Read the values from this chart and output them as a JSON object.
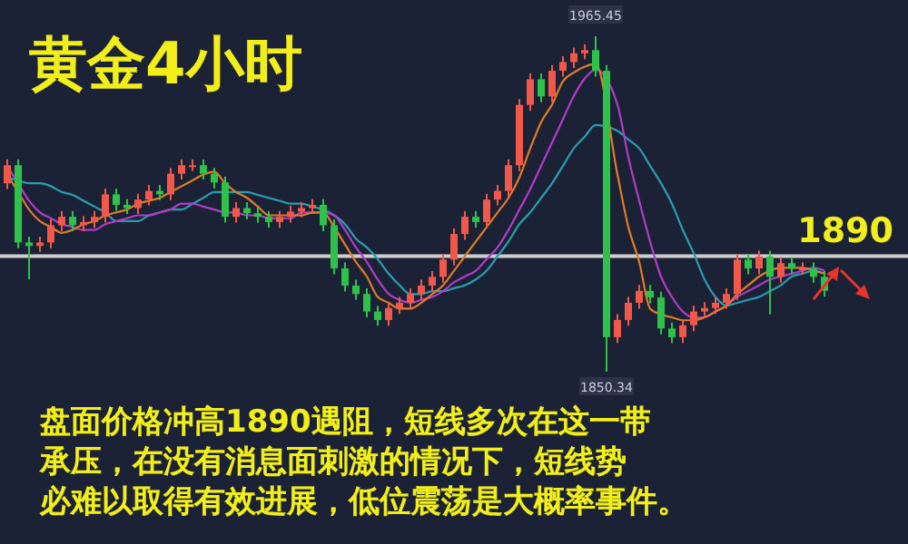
{
  "chart_data": {
    "type": "candlestick",
    "title": "黄金4小时",
    "categories": [
      null,
      null,
      null,
      null,
      null,
      null,
      null,
      null,
      null,
      null,
      null,
      null,
      null,
      null,
      null,
      null,
      null,
      null,
      null,
      null,
      null,
      null,
      null,
      null,
      null,
      null,
      null,
      null,
      null,
      null,
      null,
      null,
      null,
      null,
      null,
      null,
      null,
      null,
      null,
      null,
      null,
      null,
      null,
      null,
      null,
      null,
      null,
      null,
      null,
      null,
      null,
      null,
      null,
      null,
      null,
      null,
      null,
      null,
      null,
      null,
      null,
      null,
      null,
      null,
      null,
      null,
      null,
      null,
      null,
      null,
      null,
      null,
      null,
      null,
      null,
      null
    ],
    "ohlc": [
      [
        1915.0,
        1923.2,
        1913.0,
        1921.2
      ],
      [
        1921.2,
        1923.2,
        1892.7,
        1894.7
      ],
      [
        1894.7,
        1896.7,
        1882.0,
        1893.5
      ],
      [
        1893.5,
        1896.7,
        1891.5,
        1894.7
      ],
      [
        1894.7,
        1902.6,
        1892.7,
        1900.6
      ],
      [
        1900.6,
        1905.5,
        1898.6,
        1903.5
      ],
      [
        1903.5,
        1905.5,
        1898.6,
        1900.6
      ],
      [
        1900.6,
        1903.7,
        1898.6,
        1901.7
      ],
      [
        1901.7,
        1905.5,
        1899.7,
        1903.5
      ],
      [
        1903.5,
        1913.2,
        1901.5,
        1911.2
      ],
      [
        1911.2,
        1913.2,
        1905.6,
        1907.6
      ],
      [
        1907.6,
        1909.6,
        1904.5,
        1906.5
      ],
      [
        1906.5,
        1911.4,
        1904.5,
        1909.4
      ],
      [
        1909.4,
        1914.4,
        1907.4,
        1912.4
      ],
      [
        1912.4,
        1914.4,
        1909.2,
        1911.2
      ],
      [
        1911.2,
        1920.3,
        1909.2,
        1918.3
      ],
      [
        1918.3,
        1923.2,
        1916.3,
        1921.2
      ],
      [
        1921.2,
        1923.2,
        1919.2,
        1921.2
      ],
      [
        1921.2,
        1923.2,
        1916.3,
        1918.3
      ],
      [
        1918.3,
        1920.3,
        1913.3,
        1915.3
      ],
      [
        1915.3,
        1917.3,
        1901.5,
        1903.5
      ],
      [
        1903.5,
        1908.5,
        1901.5,
        1906.5
      ],
      [
        1906.5,
        1908.5,
        1902.7,
        1904.7
      ],
      [
        1904.7,
        1906.7,
        1901.5,
        1903.5
      ],
      [
        1903.5,
        1905.5,
        1899.7,
        1901.7
      ],
      [
        1901.7,
        1905.5,
        1899.7,
        1903.5
      ],
      [
        1903.5,
        1907.3,
        1901.5,
        1905.3
      ],
      [
        1905.3,
        1908.5,
        1903.3,
        1906.5
      ],
      [
        1906.5,
        1909.6,
        1904.5,
        1907.6
      ],
      [
        1907.6,
        1909.6,
        1898.6,
        1900.6
      ],
      [
        1900.6,
        1902.6,
        1883.8,
        1885.8
      ],
      [
        1885.8,
        1887.8,
        1877.9,
        1879.9
      ],
      [
        1879.9,
        1881.9,
        1875.0,
        1877.0
      ],
      [
        1877.0,
        1879.0,
        1869.0,
        1871.0
      ],
      [
        1871.0,
        1873.0,
        1866.1,
        1868.1
      ],
      [
        1868.1,
        1874.2,
        1866.1,
        1872.2
      ],
      [
        1872.2,
        1876.0,
        1870.2,
        1874.0
      ],
      [
        1874.0,
        1879.0,
        1872.0,
        1877.0
      ],
      [
        1877.0,
        1881.9,
        1875.0,
        1879.9
      ],
      [
        1879.9,
        1884.9,
        1877.9,
        1882.9
      ],
      [
        1882.9,
        1890.8,
        1880.9,
        1888.8
      ],
      [
        1888.8,
        1899.6,
        1886.8,
        1897.6
      ],
      [
        1897.6,
        1905.5,
        1895.6,
        1903.5
      ],
      [
        1903.5,
        1905.5,
        1899.7,
        1901.7
      ],
      [
        1901.7,
        1911.4,
        1899.7,
        1909.4
      ],
      [
        1909.4,
        1914.4,
        1907.4,
        1912.4
      ],
      [
        1912.4,
        1923.2,
        1910.4,
        1921.2
      ],
      [
        1921.2,
        1943.9,
        1919.2,
        1941.9
      ],
      [
        1941.9,
        1952.7,
        1939.9,
        1950.7
      ],
      [
        1950.7,
        1952.7,
        1942.8,
        1944.8
      ],
      [
        1944.8,
        1955.6,
        1942.8,
        1953.6
      ],
      [
        1953.6,
        1958.6,
        1951.6,
        1956.6
      ],
      [
        1956.6,
        1961.6,
        1954.6,
        1959.6
      ],
      [
        1959.6,
        1962.7,
        1957.6,
        1960.7
      ],
      [
        1960.7,
        1965.45,
        1951.6,
        1953.6
      ],
      [
        1953.6,
        1955.6,
        1850.34,
        1862.2
      ],
      [
        1862.2,
        1870.1,
        1860.2,
        1868.1
      ],
      [
        1868.1,
        1876.0,
        1866.1,
        1874.0
      ],
      [
        1874.0,
        1880.1,
        1872.0,
        1878.1
      ],
      [
        1878.1,
        1880.1,
        1873.8,
        1875.8
      ],
      [
        1875.8,
        1877.8,
        1863.2,
        1865.2
      ],
      [
        1865.2,
        1867.2,
        1860.2,
        1862.2
      ],
      [
        1862.2,
        1868.3,
        1860.2,
        1866.3
      ],
      [
        1866.3,
        1873.0,
        1864.3,
        1871.0
      ],
      [
        1871.0,
        1874.2,
        1869.0,
        1872.2
      ],
      [
        1872.2,
        1876.0,
        1870.2,
        1874.0
      ],
      [
        1874.0,
        1879.0,
        1872.0,
        1877.0
      ],
      [
        1877.0,
        1890.8,
        1875.0,
        1888.8
      ],
      [
        1888.8,
        1890.8,
        1883.8,
        1885.8
      ],
      [
        1885.8,
        1891.9,
        1883.8,
        1889.9
      ],
      [
        1889.9,
        1891.9,
        1870.0,
        1882.9
      ],
      [
        1882.9,
        1889.6,
        1880.9,
        1887.6
      ],
      [
        1887.6,
        1889.6,
        1883.8,
        1885.8
      ],
      [
        1885.8,
        1887.8,
        1883.8,
        1885.8
      ],
      [
        1885.8,
        1887.8,
        1880.9,
        1882.9
      ],
      [
        1882.9,
        1884.9,
        1876.1,
        1878.1
      ]
    ],
    "series": [
      {
        "type": "line",
        "color": "#2a9db0",
        "values": [
          1917,
          1916,
          1915,
          1915,
          1914,
          1912,
          1911,
          1909,
          1907,
          1905,
          1902,
          1902,
          1902,
          1904,
          1905,
          1906,
          1906,
          1908,
          1910,
          1912,
          1912,
          1912,
          1912,
          1911,
          1910,
          1909,
          1908,
          1908,
          1907,
          1906,
          1904,
          1901,
          1896,
          1893,
          1889,
          1884,
          1880,
          1877,
          1877,
          1878,
          1878,
          1879,
          1880,
          1882,
          1885,
          1890,
          1895,
          1901,
          1905,
          1910,
          1915,
          1921,
          1927,
          1931,
          1935,
          null,
          1933,
          1930,
          1927,
          1921,
          1915,
          1908,
          1899,
          1891,
          1882,
          1876,
          1873,
          1874,
          1875,
          1876,
          1878,
          1880,
          1883,
          1884,
          1885,
          1884
        ]
      },
      {
        "type": "line",
        "color": "#b03cc8",
        "values": [
          1921,
          1915,
          1909,
          1905,
          1903,
          1901,
          1900,
          1899,
          1899,
          1901,
          1902,
          1903,
          1904,
          1904,
          1905,
          1906,
          1908,
          1908,
          1907,
          1906,
          1905,
          1905,
          1904,
          1904,
          1903,
          1903,
          1903,
          1905,
          1905,
          1905,
          1904,
          1899,
          1893,
          1888,
          1882,
          1877,
          1875,
          1874,
          1875,
          1876,
          1878,
          1881,
          1883,
          1885,
          1889,
          1893,
          1899,
          1906,
          1913,
          1921,
          1929,
          1937,
          1945,
          1951,
          1954,
          null,
          1942,
          1924,
          1909,
          1895,
          1883,
          1876,
          1871,
          1869,
          1869,
          1871,
          1873,
          1876,
          1878,
          1880,
          1882,
          1883,
          1884,
          1885,
          1886,
          1885
        ]
      },
      {
        "type": "line",
        "color": "#e07b28",
        "values": [
          1918,
          1912,
          1906,
          1902,
          1900,
          1898,
          1899,
          1901,
          1902,
          1904,
          1905,
          1906,
          1908,
          1909,
          1910,
          1912,
          1914,
          1916,
          1918,
          1919,
          1915,
          1912,
          1910,
          1907,
          1904,
          1904,
          1904,
          1904,
          1905,
          1905,
          1900,
          1894,
          1888,
          1883,
          1876,
          1874,
          1872,
          1872,
          1874,
          1877,
          1880,
          1885,
          1890,
          1895,
          1900,
          1905,
          1910,
          1917,
          1927,
          1936,
          1942,
          1950,
          1953,
          1955,
          1956,
          null,
          1918,
          1900,
          1888,
          1872,
          1870,
          1869,
          1868,
          1868,
          1869,
          1871,
          1873,
          1877,
          1880,
          1883,
          1885,
          1886,
          1886,
          1886,
          1885,
          1884
        ]
      }
    ],
    "ref_lines": [
      {
        "axis": "y",
        "value": 1890,
        "label": "1890",
        "color": "#cfcfcf"
      }
    ],
    "annotations": [
      {
        "text": "1965.45",
        "y": 1965.45
      },
      {
        "text": "1850.34",
        "y": 1850.34
      },
      "盘面价格冲高1890遇阻，短线多次在这一带",
      "承压，在没有消息面刺激的情况下，短线势",
      "必难以取得有效进展，低位震荡是大概率事件。"
    ]
  }
}
